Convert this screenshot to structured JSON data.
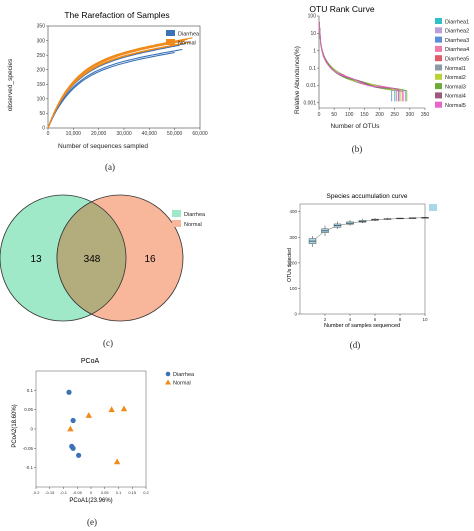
{
  "captions": {
    "a": "(a)",
    "b": "(b)",
    "c": "(c)",
    "d": "(d)",
    "e": "(e)"
  },
  "colors": {
    "diarrhea": "#3b72b7",
    "normal": "#f08a1a",
    "venn_diarrhea": "#9fe8c8",
    "venn_normal": "#f8b79a",
    "venn_overlap": "#b3ac7d"
  },
  "chart_data": [
    {
      "id": "rarefaction",
      "type": "line",
      "title": "The Rarefaction of Samples",
      "xlabel": "Number of sequences sampled",
      "ylabel": "observed_species",
      "xlim": [
        0,
        60000
      ],
      "ylim": [
        0,
        350
      ],
      "xticks": [
        "0",
        "10,000",
        "20,000",
        "30,000",
        "40,000",
        "50,000",
        "60,000"
      ],
      "xtick_values": [
        0,
        10000,
        20000,
        30000,
        40000,
        50000,
        60000
      ],
      "yticks": [
        "0",
        "50",
        "100",
        "150",
        "200",
        "250",
        "300",
        "350"
      ],
      "ytick_values": [
        0,
        50,
        100,
        150,
        200,
        250,
        300,
        350
      ],
      "legend_position": "top-right",
      "legend": [
        "Diarrhea",
        "Normal"
      ],
      "series": [
        {
          "name": "Diarrhea",
          "group": "Diarrhea",
          "max_x": 51000,
          "asymptote": 300
        },
        {
          "name": "Diarrhea",
          "group": "Diarrhea",
          "max_x": 52000,
          "asymptote": 285
        },
        {
          "name": "Diarrhea",
          "group": "Diarrhea",
          "max_x": 53000,
          "asymptote": 270
        },
        {
          "name": "Diarrhea",
          "group": "Diarrhea",
          "max_x": 54000,
          "asymptote": 290
        },
        {
          "name": "Diarrhea",
          "group": "Diarrhea",
          "max_x": 50000,
          "asymptote": 260
        },
        {
          "name": "Normal",
          "group": "Normal",
          "max_x": 55000,
          "asymptote": 305
        },
        {
          "name": "Normal",
          "group": "Normal",
          "max_x": 56000,
          "asymptote": 295
        },
        {
          "name": "Normal",
          "group": "Normal",
          "max_x": 54000,
          "asymptote": 300
        },
        {
          "name": "Normal",
          "group": "Normal",
          "max_x": 53000,
          "asymptote": 290
        },
        {
          "name": "Normal",
          "group": "Normal",
          "max_x": 57000,
          "asymptote": 310
        }
      ]
    },
    {
      "id": "rank",
      "type": "line",
      "title": "OTU Rank Curve",
      "xlabel": "Number of OTUs",
      "ylabel": "Relative Abundunce(%)",
      "xlim": [
        0,
        350
      ],
      "xticks": [
        "0",
        "50",
        "100",
        "150",
        "200",
        "250",
        "300",
        "350"
      ],
      "xtick_values": [
        0,
        50,
        100,
        150,
        200,
        250,
        300,
        350
      ],
      "yscale": "log",
      "ylim": [
        0.0005,
        100
      ],
      "yticks": [
        "100",
        "10",
        "1",
        "0.1",
        "0.01",
        "0.001"
      ],
      "ytick_values": [
        100,
        10,
        1,
        0.1,
        0.01,
        0.001
      ],
      "legend_position": "right",
      "series": [
        {
          "name": "Diarrhea1",
          "color": "#32c0c8",
          "max_rank": 250
        },
        {
          "name": "Diarrhea2",
          "color": "#b99ed7",
          "max_rank": 265
        },
        {
          "name": "Diarrhea3",
          "color": "#5a8ed6",
          "max_rank": 240
        },
        {
          "name": "Diarrhea4",
          "color": "#f07aa8",
          "max_rank": 275
        },
        {
          "name": "Diarrhea5",
          "color": "#e05a6a",
          "max_rank": 255
        },
        {
          "name": "Normal1",
          "color": "#8a9aa6",
          "max_rank": 285
        },
        {
          "name": "Normal2",
          "color": "#b8d23a",
          "max_rank": 270
        },
        {
          "name": "Normal3",
          "color": "#6aab3a",
          "max_rank": 290
        },
        {
          "name": "Normal4",
          "color": "#9a5a7a",
          "max_rank": 262
        },
        {
          "name": "Normal5",
          "color": "#e864c8",
          "max_rank": 278
        }
      ]
    },
    {
      "id": "venn",
      "type": "venn",
      "sets": [
        "Diarrhea",
        "Normal"
      ],
      "values": {
        "only_left": "13",
        "both": "348",
        "only_right": "16"
      },
      "legend": [
        "Diarrhea",
        "Normal"
      ]
    },
    {
      "id": "accum",
      "type": "box",
      "title": "Species accumulation curve",
      "xlabel": "Number of samples sequenced",
      "ylabel": "OTUs detected",
      "xlim": [
        0,
        10
      ],
      "xticks": [
        "2",
        "4",
        "6",
        "8",
        "10"
      ],
      "xtick_values": [
        2,
        4,
        6,
        8,
        10
      ],
      "ylim": [
        0,
        430
      ],
      "yticks": [
        "0",
        "100",
        "200",
        "300",
        "400"
      ],
      "ytick_values": [
        0,
        100,
        200,
        300,
        400
      ],
      "x": [
        1,
        2,
        3,
        4,
        5,
        6,
        7,
        8,
        9,
        10
      ],
      "medians": [
        285,
        325,
        345,
        355,
        362,
        368,
        371,
        373,
        375,
        377
      ],
      "q1": [
        275,
        318,
        339,
        351,
        359,
        366,
        370,
        372,
        374,
        377
      ],
      "q3": [
        295,
        333,
        352,
        360,
        366,
        371,
        373,
        375,
        376,
        377
      ],
      "lo": [
        262,
        305,
        332,
        345,
        355,
        363,
        368,
        371,
        373,
        377
      ],
      "hi": [
        305,
        345,
        362,
        367,
        372,
        375,
        376,
        377,
        377,
        377
      ]
    },
    {
      "id": "pcoa",
      "type": "scatter",
      "title": "PCoA",
      "xlabel": "PCoA1(23.96%)",
      "ylabel": "PCoA2(18.60%)",
      "xlim": [
        -0.2,
        0.2
      ],
      "ylim": [
        -0.15,
        0.15
      ],
      "xticks": [
        "-0.2",
        "-0.15",
        "-0.1",
        "-0.05",
        "0",
        "0.05",
        "0.1",
        "0.15",
        "0.2"
      ],
      "xtick_values": [
        -0.2,
        -0.15,
        -0.1,
        -0.05,
        0,
        0.05,
        0.1,
        0.15,
        0.2
      ],
      "yticks": [
        "0.1",
        "0.05",
        "0",
        "-0.05",
        "-0.1"
      ],
      "ytick_values": [
        0.1,
        0.05,
        0,
        -0.05,
        -0.1
      ],
      "legend_position": "top-right",
      "series": [
        {
          "name": "Diarrhea",
          "marker": "circle",
          "points": [
            [
              -0.08,
              0.095
            ],
            [
              -0.065,
              0.022
            ],
            [
              -0.07,
              -0.045
            ],
            [
              -0.065,
              -0.05
            ],
            [
              -0.045,
              -0.068
            ]
          ]
        },
        {
          "name": "Normal",
          "marker": "triangle",
          "points": [
            [
              -0.075,
              0.0
            ],
            [
              -0.008,
              0.035
            ],
            [
              0.075,
              0.05
            ],
            [
              0.12,
              0.052
            ],
            [
              0.095,
              -0.085
            ]
          ]
        }
      ]
    }
  ]
}
